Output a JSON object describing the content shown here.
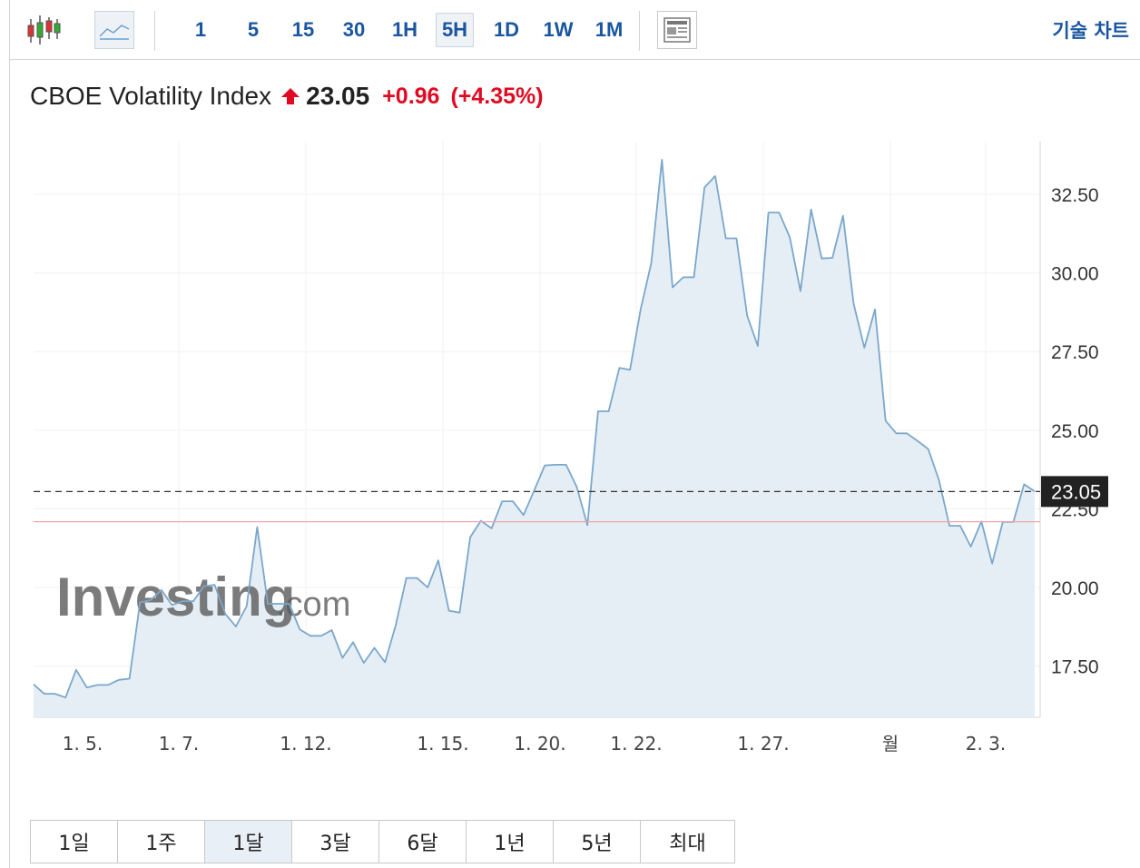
{
  "toolbar": {
    "candle_icon": "candlestick-chart-icon",
    "line_icon": "line-chart-icon",
    "timeframes": [
      "1",
      "5",
      "15",
      "30",
      "1H",
      "5H",
      "1D",
      "1W",
      "1M"
    ],
    "active_timeframe": "5H",
    "layout_icon": "news-layout-icon",
    "technical_chart_label": "기술 차트"
  },
  "header": {
    "name": "CBOE Volatility Index",
    "last": "23.05",
    "change": "+0.96",
    "change_pct": "(+4.35%)",
    "direction": "up"
  },
  "colors": {
    "up": "#e00b22",
    "line": "#7aa7cc",
    "area": "#e6eef5",
    "link": "#1a56a0"
  },
  "watermark": {
    "brand": "Investing",
    "suffix": ".com"
  },
  "chart_data": {
    "type": "area",
    "xlabel": "",
    "ylabel": "",
    "ylim": [
      15.8,
      33.8
    ],
    "y_ticks": [
      "17.50",
      "20.00",
      "22.50",
      "25.00",
      "27.50",
      "30.00",
      "32.50"
    ],
    "x_tick_labels": [
      "1. 5.",
      "1. 7.",
      "1. 12.",
      "1. 15.",
      "1. 20.",
      "1. 22.",
      "1. 27.",
      "월",
      "2. 3."
    ],
    "last_value_label": "23.05",
    "last_value": 23.05,
    "previous_close": 22.09,
    "grid": true,
    "values": [
      16.92,
      16.62,
      16.62,
      16.5,
      17.38,
      16.82,
      16.9,
      16.9,
      17.06,
      17.1,
      19.52,
      19.6,
      19.92,
      19.44,
      19.56,
      19.56,
      20.04,
      20.08,
      19.16,
      18.76,
      19.4,
      21.92,
      19.48,
      19.48,
      19.48,
      18.66,
      18.46,
      18.46,
      18.64,
      17.76,
      18.26,
      17.6,
      18.08,
      17.62,
      18.8,
      20.3,
      20.3,
      20,
      20.86,
      19.26,
      19.2,
      21.6,
      22.12,
      21.88,
      22.74,
      22.74,
      22.3,
      23.08,
      23.88,
      23.9,
      23.9,
      23.2,
      21.98,
      25.6,
      25.6,
      26.98,
      26.92,
      28.84,
      30.32,
      33.6,
      29.54,
      29.86,
      29.86,
      32.72,
      33.08,
      31.1,
      31.1,
      28.64,
      27.68,
      31.92,
      31.92,
      31.14,
      29.42,
      32.02,
      30.46,
      30.48,
      31.82,
      29.02,
      27.62,
      28.84,
      25.3,
      24.9,
      24.9,
      24.66,
      24.4,
      23.42,
      21.96,
      21.96,
      21.3,
      22.1,
      20.76,
      22.08,
      22.08,
      23.28,
      23.05
    ]
  },
  "ranges": {
    "items": [
      "1일",
      "1주",
      "1달",
      "3달",
      "6달",
      "1년",
      "5년",
      "최대"
    ],
    "active": "1달"
  }
}
